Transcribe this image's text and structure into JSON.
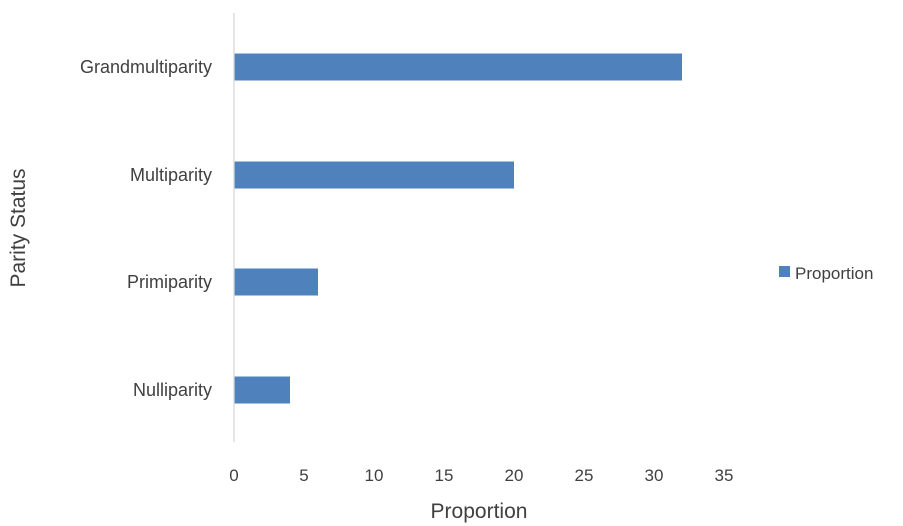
{
  "chart_data": {
    "type": "bar",
    "orientation": "horizontal",
    "categories": [
      "Nulliparity",
      "Primiparity",
      "Multiparity",
      "Grandmultiparity"
    ],
    "series": [
      {
        "name": "Proportion",
        "values": [
          4,
          6,
          20,
          32
        ],
        "color": "#4f81bd"
      }
    ],
    "xlabel": "Proportion",
    "ylabel": "Parity Status",
    "xlim": [
      0,
      35
    ],
    "xticks": [
      "0",
      "5",
      "10",
      "15",
      "20",
      "25",
      "30",
      "35"
    ],
    "grid": false,
    "legend": {
      "position": "right",
      "entries": [
        "Proportion"
      ]
    }
  }
}
